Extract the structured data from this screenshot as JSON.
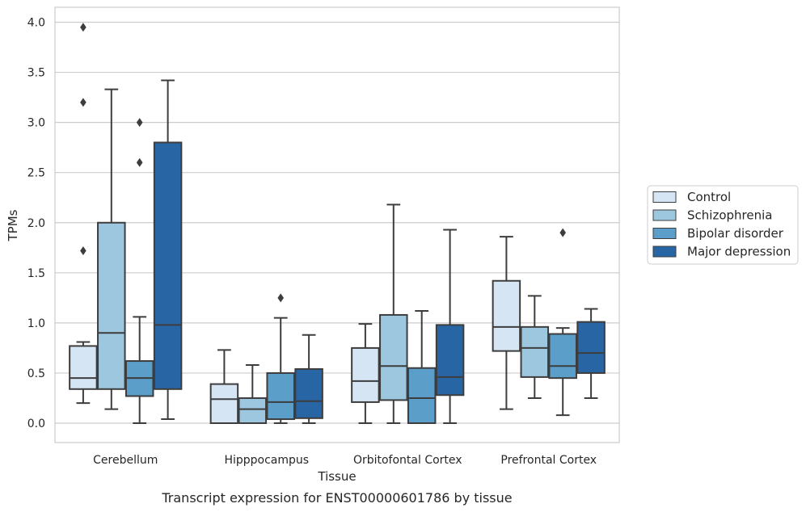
{
  "caption": "Transcript expression for ENST00000601786 by tissue",
  "chart_data": {
    "type": "boxplot",
    "xlabel": "Tissue",
    "ylabel": "TPMs",
    "ylim": [
      -0.19,
      4.15
    ],
    "yticks": [
      0.0,
      0.5,
      1.0,
      1.5,
      2.0,
      2.5,
      3.0,
      3.5,
      4.0
    ],
    "ytick_labels": [
      "0.0",
      "0.5",
      "1.0",
      "1.5",
      "2.0",
      "2.5",
      "3.0",
      "3.5",
      "4.0"
    ],
    "grid": "horizontal",
    "legend_placement": "outside-right",
    "categories": [
      "Cerebellum",
      "Hipppocampus",
      "Orbitofontal Cortex",
      "Prefrontal Cortex"
    ],
    "series": [
      {
        "name": "Control",
        "color": "#d6e5f4",
        "boxes": [
          {
            "whislo": 0.2,
            "q1": 0.34,
            "med": 0.45,
            "q3": 0.77,
            "whishi": 0.81,
            "fliers": [
              1.72,
              3.2,
              3.95
            ]
          },
          {
            "whislo": 0.0,
            "q1": 0.0,
            "med": 0.24,
            "q3": 0.39,
            "whishi": 0.73,
            "fliers": []
          },
          {
            "whislo": 0.0,
            "q1": 0.21,
            "med": 0.42,
            "q3": 0.75,
            "whishi": 0.99,
            "fliers": []
          },
          {
            "whislo": 0.14,
            "q1": 0.72,
            "med": 0.96,
            "q3": 1.42,
            "whishi": 1.86,
            "fliers": []
          }
        ]
      },
      {
        "name": "Schizophrenia",
        "color": "#9dc6df",
        "boxes": [
          {
            "whislo": 0.14,
            "q1": 0.34,
            "med": 0.9,
            "q3": 2.0,
            "whishi": 3.33,
            "fliers": []
          },
          {
            "whislo": 0.0,
            "q1": 0.0,
            "med": 0.14,
            "q3": 0.25,
            "whishi": 0.58,
            "fliers": []
          },
          {
            "whislo": 0.0,
            "q1": 0.23,
            "med": 0.57,
            "q3": 1.08,
            "whishi": 2.18,
            "fliers": []
          },
          {
            "whislo": 0.25,
            "q1": 0.46,
            "med": 0.75,
            "q3": 0.96,
            "whishi": 1.27,
            "fliers": []
          }
        ]
      },
      {
        "name": "Bipolar disorder",
        "color": "#5a9ec9",
        "boxes": [
          {
            "whislo": 0.0,
            "q1": 0.27,
            "med": 0.45,
            "q3": 0.62,
            "whishi": 1.06,
            "fliers": [
              2.6,
              3.0
            ]
          },
          {
            "whislo": 0.0,
            "q1": 0.04,
            "med": 0.21,
            "q3": 0.5,
            "whishi": 1.05,
            "fliers": [
              1.25
            ]
          },
          {
            "whislo": 0.0,
            "q1": 0.0,
            "med": 0.25,
            "q3": 0.55,
            "whishi": 1.12,
            "fliers": []
          },
          {
            "whislo": 0.08,
            "q1": 0.45,
            "med": 0.57,
            "q3": 0.89,
            "whishi": 0.95,
            "fliers": [
              1.9
            ]
          }
        ]
      },
      {
        "name": "Major depression",
        "color": "#2865a5",
        "boxes": [
          {
            "whislo": 0.04,
            "q1": 0.34,
            "med": 0.98,
            "q3": 2.8,
            "whishi": 3.42,
            "fliers": []
          },
          {
            "whislo": 0.0,
            "q1": 0.05,
            "med": 0.22,
            "q3": 0.54,
            "whishi": 0.88,
            "fliers": []
          },
          {
            "whislo": 0.0,
            "q1": 0.28,
            "med": 0.46,
            "q3": 0.98,
            "whishi": 1.93,
            "fliers": []
          },
          {
            "whislo": 0.25,
            "q1": 0.5,
            "med": 0.7,
            "q3": 1.01,
            "whishi": 1.14,
            "fliers": []
          }
        ]
      }
    ]
  }
}
